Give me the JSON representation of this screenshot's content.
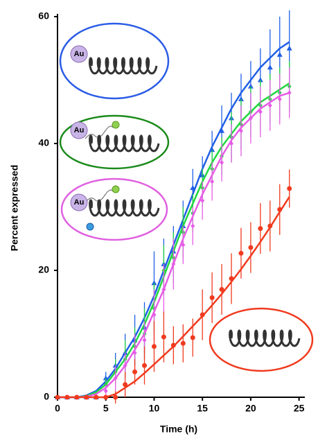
{
  "chart_data": {
    "type": "line",
    "xlabel": "Time (h)",
    "ylabel": "Percent expressed",
    "x": [
      0,
      1,
      2,
      3,
      4,
      5,
      6,
      7,
      8,
      9,
      10,
      11,
      12,
      13,
      14,
      15,
      16,
      17,
      18,
      19,
      20,
      21,
      22,
      23,
      24
    ],
    "xlim": [
      0,
      25.6
    ],
    "xticks": [
      0,
      5,
      10,
      15,
      20,
      25
    ],
    "ylim": [
      0,
      60
    ],
    "yticks": [
      0,
      20,
      40,
      60
    ],
    "annotations": [
      "Au",
      "Au",
      "Au"
    ],
    "series": [
      {
        "color": "#1f5fe6",
        "marker": "triangle",
        "values": [
          0,
          0,
          0,
          0,
          0,
          3,
          5,
          7,
          9,
          11,
          18,
          21,
          23,
          27,
          33,
          35,
          39,
          42,
          44,
          47,
          49,
          50,
          52,
          54,
          55
        ],
        "errors": [
          0,
          0,
          0,
          0,
          0,
          1,
          2,
          3,
          4,
          4,
          5,
          4,
          4,
          4,
          3,
          3,
          3,
          4,
          4,
          4,
          4,
          5,
          6,
          6,
          6
        ],
        "fit": [
          0,
          0,
          0,
          0.3,
          1,
          2.5,
          4.5,
          7,
          9.5,
          12.5,
          16,
          20,
          24,
          28,
          32,
          36,
          39.5,
          42.5,
          45.5,
          48,
          50,
          52,
          53.5,
          55,
          56
        ]
      },
      {
        "color": "#22d640",
        "marker": "diamond",
        "values": [
          0,
          0,
          0,
          0,
          0,
          2,
          4,
          6,
          8,
          10,
          14,
          20,
          22,
          26,
          29,
          33,
          36,
          38,
          41,
          43,
          45,
          46,
          47,
          48,
          49
        ],
        "errors": [
          0,
          0,
          0,
          0,
          0,
          1,
          2,
          3,
          3,
          4,
          4,
          4,
          4,
          4,
          3,
          3,
          3,
          3,
          4,
          4,
          4,
          4,
          4,
          4,
          4
        ],
        "fit": [
          0,
          0,
          0,
          0.2,
          0.8,
          2,
          4,
          6,
          8.5,
          11.5,
          15,
          19,
          23,
          27,
          30.5,
          34,
          37,
          39.5,
          41.5,
          43.5,
          45,
          46.5,
          47.5,
          48.5,
          49.5
        ]
      },
      {
        "color": "#e65ce6",
        "marker": "diamond",
        "values": [
          0,
          0,
          0,
          0,
          0,
          1,
          3,
          5,
          7,
          9,
          13,
          17,
          21,
          24,
          27,
          31,
          34,
          37,
          40,
          42,
          44,
          45,
          46,
          47,
          48
        ],
        "errors": [
          0,
          0,
          0,
          0,
          0,
          1,
          2,
          2,
          3,
          3,
          4,
          4,
          4,
          3,
          3,
          3,
          3,
          3,
          3,
          4,
          4,
          4,
          4,
          4,
          4
        ],
        "fit": [
          0,
          0,
          0,
          0.1,
          0.5,
          1.5,
          3,
          5,
          7.5,
          10,
          13.5,
          17,
          21,
          25,
          28.5,
          32,
          35,
          38,
          40.5,
          42.5,
          44,
          45.5,
          46.5,
          47.5,
          48
        ]
      },
      {
        "color": "#f03a1e",
        "marker": "circle",
        "values": [
          0,
          0,
          0,
          0,
          0,
          0,
          0,
          2,
          4,
          5,
          8,
          9.5,
          8.2,
          8.5,
          9.4,
          13,
          15.7,
          17,
          18.7,
          22.7,
          23.6,
          26.6,
          27,
          29.6,
          32.9
        ],
        "errors": [
          0,
          0,
          0,
          0,
          0,
          0,
          1,
          2,
          2,
          3,
          4,
          4,
          3,
          3,
          3,
          4,
          4,
          4,
          4,
          4,
          4,
          4,
          4,
          4,
          3
        ],
        "fit": [
          0,
          0,
          0,
          0,
          0,
          0,
          0.5,
          1.5,
          2.5,
          3.8,
          5.2,
          6.6,
          8,
          9.6,
          11.2,
          12.8,
          14.5,
          16.3,
          18.2,
          20.2,
          22.3,
          24.5,
          26.8,
          29.2,
          31.6
        ]
      }
    ]
  }
}
